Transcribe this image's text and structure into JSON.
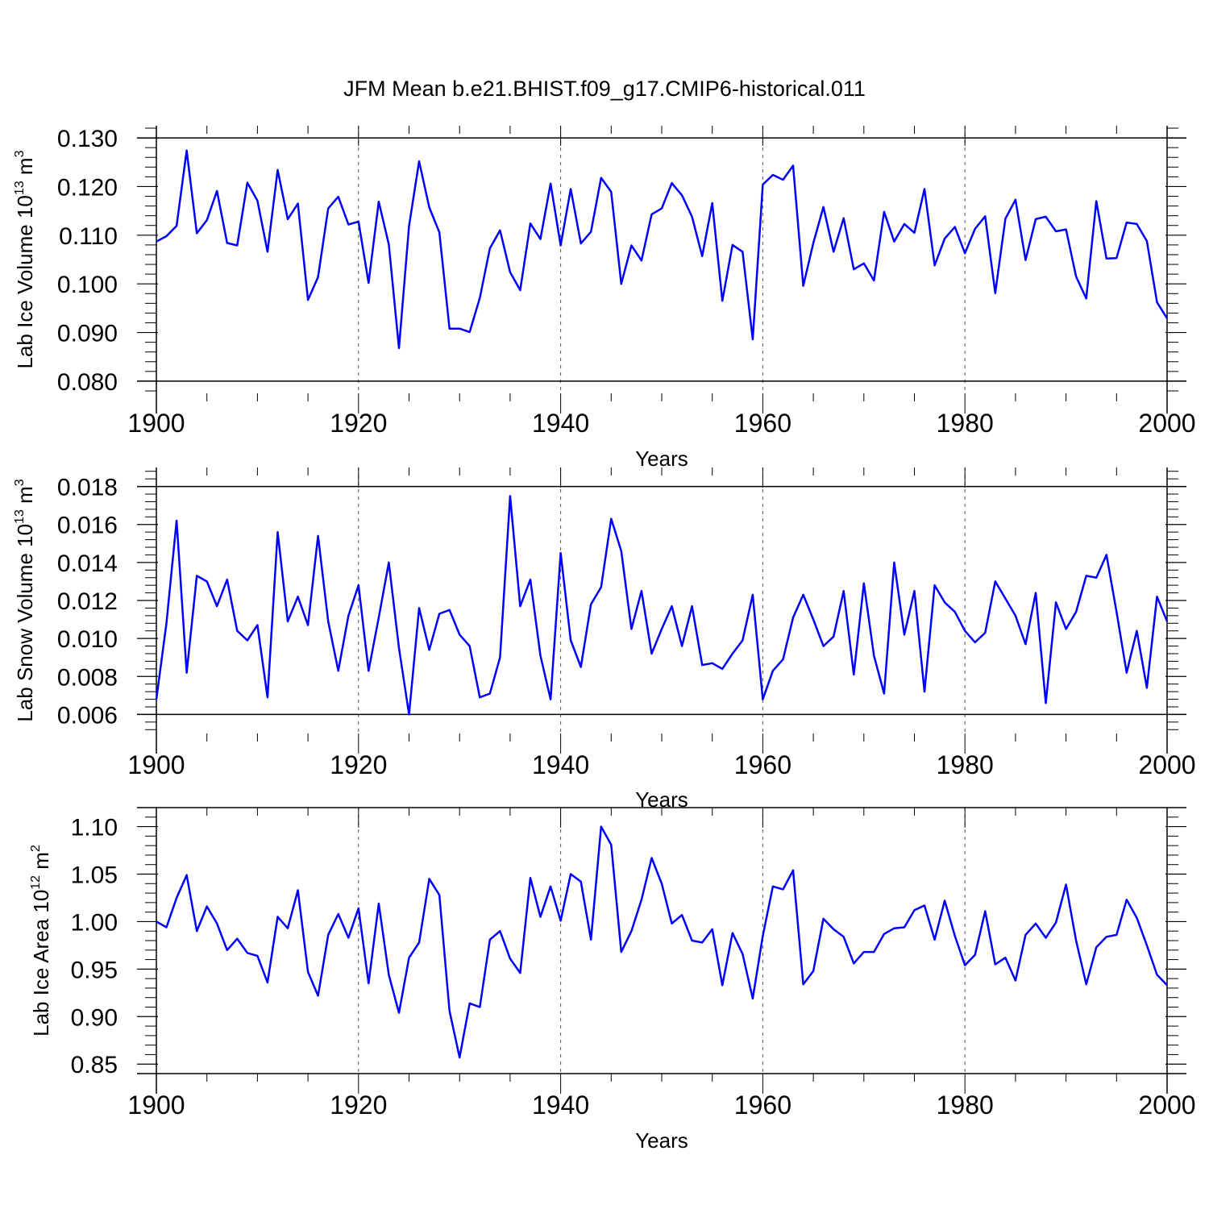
{
  "title": "JFM Mean b.e21.BHIST.f09_g17.CMIP6-historical.011",
  "line_color": "#0000ff",
  "grid_color": "#555555",
  "chart_data": [
    {
      "type": "line",
      "xlabel": "Years",
      "ylabel": "Lab Ice Volume 10",
      "ylabel_exp": "13",
      "ylabel_unit": " m",
      "ylabel_unit_exp": "3",
      "xlim": [
        1900,
        2000
      ],
      "ylim": [
        0.0775,
        0.1325
      ],
      "xticks": [
        1900,
        1920,
        1940,
        1960,
        1980,
        2000
      ],
      "xtick_labels": [
        "1900",
        "1920",
        "1940",
        "1960",
        "1980",
        "2000"
      ],
      "yticks": [
        0.08,
        0.09,
        0.1,
        0.11,
        0.12,
        0.13
      ],
      "ytick_labels": [
        "0.080",
        "0.090",
        "0.100",
        "0.110",
        "0.120",
        "0.130"
      ],
      "grid": "dashed vertical at 1920, 1940, 1960, 1980",
      "series": [
        {
          "name": "Lab Ice Volume",
          "x_start": 1900,
          "values": [
            0.1087,
            0.1098,
            0.1119,
            0.1274,
            0.1104,
            0.1131,
            0.1191,
            0.1084,
            0.1079,
            0.1208,
            0.1171,
            0.1066,
            0.1234,
            0.1133,
            0.1165,
            0.0967,
            0.1014,
            0.1155,
            0.1179,
            0.1122,
            0.1128,
            0.1002,
            0.1169,
            0.1081,
            0.0868,
            0.1119,
            0.1252,
            0.1157,
            0.1106,
            0.0908,
            0.0908,
            0.0901,
            0.0971,
            0.1073,
            0.111,
            0.1024,
            0.0987,
            0.1124,
            0.1092,
            0.1206,
            0.1079,
            0.1195,
            0.1083,
            0.1107,
            0.1218,
            0.1189,
            0.1,
            0.1079,
            0.1048,
            0.1143,
            0.1155,
            0.1207,
            0.1182,
            0.1138,
            0.1057,
            0.1166,
            0.0965,
            0.108,
            0.1066,
            0.0886,
            0.1204,
            0.1224,
            0.1214,
            0.1243,
            0.0996,
            0.1084,
            0.1158,
            0.1066,
            0.1135,
            0.103,
            0.1042,
            0.1007,
            0.1148,
            0.1087,
            0.1123,
            0.1105,
            0.1195,
            0.1038,
            0.1093,
            0.1117,
            0.1063,
            0.1113,
            0.1139,
            0.0981,
            0.1134,
            0.1173,
            0.1049,
            0.1133,
            0.1138,
            0.1108,
            0.1112,
            0.1015,
            0.097,
            0.117,
            0.1052,
            0.1053,
            0.1126,
            0.1123,
            0.1088,
            0.0962,
            0.0929
          ]
        }
      ]
    },
    {
      "type": "line",
      "xlabel": "Years",
      "ylabel": "Lab Snow Volume 10",
      "ylabel_exp": "13",
      "ylabel_unit": " m",
      "ylabel_unit_exp": "3",
      "xlim": [
        1900,
        2000
      ],
      "ylim": [
        0.005,
        0.019
      ],
      "xticks": [
        1900,
        1920,
        1940,
        1960,
        1980,
        2000
      ],
      "xtick_labels": [
        "1900",
        "1920",
        "1940",
        "1960",
        "1980",
        "2000"
      ],
      "yticks": [
        0.006,
        0.008,
        0.01,
        0.012,
        0.014,
        0.016,
        0.018
      ],
      "ytick_labels": [
        "0.006",
        "0.008",
        "0.010",
        "0.012",
        "0.014",
        "0.016",
        "0.018"
      ],
      "grid": "dashed vertical at 1920, 1940, 1960, 1980",
      "series": [
        {
          "name": "Lab Snow Volume",
          "x_start": 1900,
          "values": [
            0.0068,
            0.0108,
            0.0162,
            0.0082,
            0.0133,
            0.013,
            0.0117,
            0.0131,
            0.0104,
            0.0099,
            0.0107,
            0.0069,
            0.0156,
            0.0109,
            0.0122,
            0.0107,
            0.0154,
            0.0109,
            0.0083,
            0.0112,
            0.0128,
            0.0083,
            0.0111,
            0.014,
            0.0095,
            0.006,
            0.0116,
            0.0094,
            0.0113,
            0.0115,
            0.0102,
            0.0096,
            0.0069,
            0.0071,
            0.009,
            0.0175,
            0.0117,
            0.0131,
            0.0091,
            0.0068,
            0.0145,
            0.0099,
            0.0085,
            0.0118,
            0.0127,
            0.0163,
            0.0146,
            0.0105,
            0.0125,
            0.0092,
            0.0105,
            0.0117,
            0.0096,
            0.0117,
            0.0086,
            0.0087,
            0.0084,
            0.0092,
            0.0099,
            0.0123,
            0.0068,
            0.0083,
            0.0089,
            0.0111,
            0.0123,
            0.011,
            0.0096,
            0.0101,
            0.0125,
            0.0081,
            0.0129,
            0.0091,
            0.0071,
            0.014,
            0.0102,
            0.0125,
            0.0072,
            0.0128,
            0.0119,
            0.0114,
            0.0104,
            0.0098,
            0.0103,
            0.013,
            0.0121,
            0.0112,
            0.0097,
            0.0124,
            0.0066,
            0.0119,
            0.0105,
            0.0114,
            0.0133,
            0.0132,
            0.0144,
            0.0114,
            0.0082,
            0.0104,
            0.0074,
            0.0122,
            0.0109
          ]
        }
      ]
    },
    {
      "type": "line",
      "xlabel": "Years",
      "ylabel": "Lab Ice Area 10",
      "ylabel_exp": "12",
      "ylabel_unit": " m",
      "ylabel_unit_exp": "2",
      "xlim": [
        1900,
        2000
      ],
      "ylim": [
        0.84,
        1.12
      ],
      "xticks": [
        1900,
        1920,
        1940,
        1960,
        1980,
        2000
      ],
      "xtick_labels": [
        "1900",
        "1920",
        "1940",
        "1960",
        "1980",
        "2000"
      ],
      "yticks": [
        0.85,
        0.9,
        0.95,
        1.0,
        1.05,
        1.1
      ],
      "ytick_labels": [
        "0.85",
        "0.90",
        "0.95",
        "1.00",
        "1.05",
        "1.10"
      ],
      "grid": "dashed vertical at 1920, 1940, 1960, 1980",
      "series": [
        {
          "name": "Lab Ice Area",
          "x_start": 1900,
          "values": [
            1.0,
            0.994,
            1.025,
            1.049,
            0.99,
            1.016,
            0.998,
            0.97,
            0.982,
            0.967,
            0.964,
            0.936,
            1.005,
            0.993,
            1.033,
            0.947,
            0.922,
            0.986,
            1.008,
            0.983,
            1.014,
            0.935,
            1.019,
            0.944,
            0.904,
            0.962,
            0.978,
            1.045,
            1.028,
            0.906,
            0.857,
            0.914,
            0.91,
            0.981,
            0.99,
            0.961,
            0.946,
            1.046,
            1.005,
            1.037,
            1.001,
            1.05,
            1.042,
            0.981,
            1.1,
            1.081,
            0.968,
            0.99,
            1.023,
            1.067,
            1.04,
            0.998,
            1.007,
            0.98,
            0.978,
            0.992,
            0.933,
            0.988,
            0.966,
            0.919,
            0.985,
            1.037,
            1.034,
            1.054,
            0.934,
            0.948,
            1.003,
            0.992,
            0.984,
            0.956,
            0.968,
            0.968,
            0.987,
            0.993,
            0.994,
            1.012,
            1.017,
            0.981,
            1.022,
            0.985,
            0.954,
            0.965,
            1.011,
            0.955,
            0.962,
            0.938,
            0.986,
            0.998,
            0.983,
            0.999,
            1.039,
            0.98,
            0.934,
            0.973,
            0.984,
            0.986,
            1.023,
            1.004,
            0.975,
            0.944,
            0.933
          ]
        }
      ]
    }
  ]
}
